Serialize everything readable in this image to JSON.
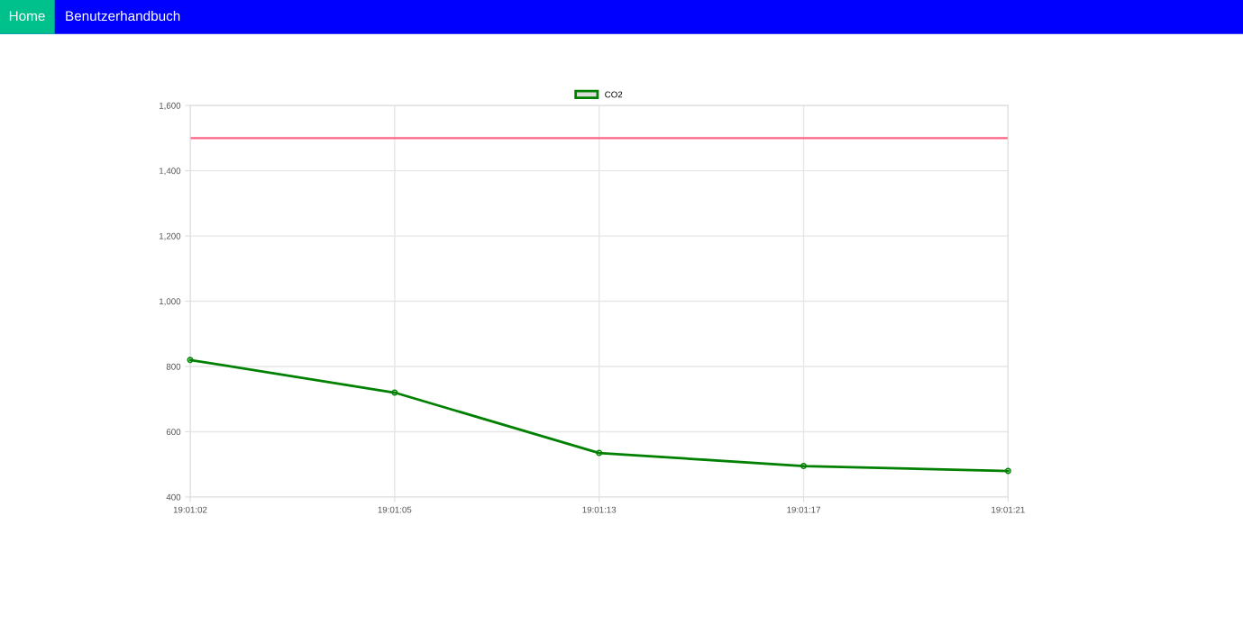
{
  "chart_data": {
    "type": "line",
    "categories": [
      "19:01:02",
      "19:01:05",
      "19:01:13",
      "19:01:17",
      "19:01:21"
    ],
    "series": [
      {
        "name": "CO2",
        "color": "#008000",
        "values": [
          820,
          720,
          535,
          495,
          480
        ]
      }
    ],
    "ylim": [
      400,
      1600
    ],
    "yticks": [
      400,
      600,
      800,
      {
        "value": 1000,
        "label": "1,000"
      },
      {
        "value": 1200,
        "label": "1,200"
      },
      {
        "value": 1400,
        "label": "1,400"
      },
      {
        "value": 1600,
        "label": "1,600"
      }
    ],
    "ref_lines": [
      {
        "axis": "y",
        "value": 1500,
        "color": "#ff6384"
      }
    ],
    "grid": true,
    "legend": "top",
    "marker": "circle",
    "line_style": "solid",
    "annotations": [
      "Home",
      "Benutzerhandbuch"
    ]
  }
}
